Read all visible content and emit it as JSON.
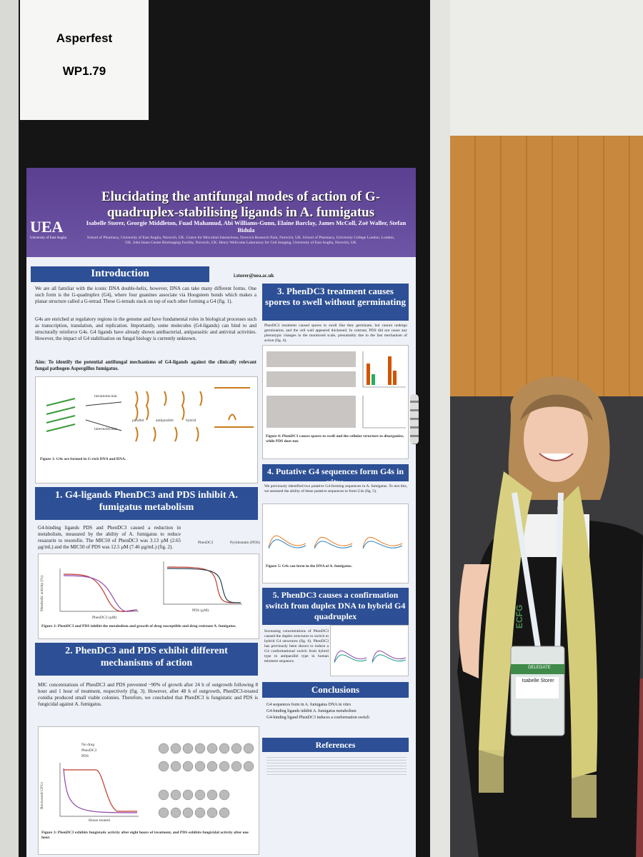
{
  "sign": {
    "line1": "Asperfest",
    "line2": "WP1.79"
  },
  "poster": {
    "title": "Elucidating the antifungal modes of action of G-quadruplex-stabilising ligands in A. fumigatus",
    "logo": "UEA",
    "logo_caption": "University of East Anglia",
    "authors": "Isabelle Storer, Georgie Middleton, Fuad Mahamud, Abi Williams-Gunn, Elaine Barclay, James McColl, Zoë Waller, Stefan Bidula",
    "affiliations": "School of Pharmacy, University of East Anglia, Norwich, UK. Centre for Microbial Interactions, Norwich Research Park, Norwich, UK. School of Pharmacy, University College London, London, UK. John Innes Centre Bioimaging Facility, Norwich, UK. Henry Wellcome Laboratory for Cell Imaging, University of East Anglia, Norwich, UK",
    "email": "i.storer@uea.ac.uk",
    "intro": {
      "heading": "Introduction",
      "p1": "We are all familiar with the iconic DNA double-helix, however, DNA can take many different forms. One such form is the G-quadruplex (G4), where four guanines associate via Hoogsteen bonds which makes a planar structure called a G-tetrad. These G-tetrads stack on top of each other forming a G4 (fig. 1).",
      "p2": "G4s are enriched at regulatory regions in the genome and have fundamental roles in biological processes such as transcription, translation, and replication. Importantly, some molecules (G4-ligands) can bind to and structurally reinforce G4s. G4 ligands have already shown antibacterial, antiparasitic and antiviral activities. However, the impact of G4 stabilisation on fungal biology is currently unknown.",
      "aim": "Aim: To identify the potential antifungal mechanisms of G4-ligands against the clinically relevant fungal pathogen Aspergillus fumigatus.",
      "fig_labels": [
        "intramolecular",
        "intermolecular",
        "parallel",
        "antiparallel",
        "hybrid"
      ],
      "caption": "Figure 1: G4s are formed in G-rich DNA and RNA."
    },
    "s1": {
      "heading": "1. G4-ligands PhenDC3 and PDS inhibit A. fumigatus metabolism",
      "text": "G4-binding ligands PDS and PhenDC3 caused a reduction in metabolism, measured by the ability of A. fumigatus to reduce resazurin to resorufin. The MIC50 of PhenDC3 was 3.13 µM (2.65 µg/mL) and the MIC50 of PDS was 12.5 µM (7.46 µg/mL) (fig. 2).",
      "ligands": [
        "PhenDC3",
        "Pyridostatin (PDS)"
      ],
      "y_label": "Metabolic activity (%)",
      "x_labels": [
        "PhenDC3 (µM)",
        "PDS (µM)"
      ],
      "caption": "Figure 2: PhenDC3 and PDS inhibit the metabolism and growth of drug susceptible and drug resistant A. fumigatus."
    },
    "s2": {
      "heading": "2. PhenDC3 and PDS exhibit different mechanisms of action",
      "text": "MIC concentrations of PhenDC3 and PDS prevented ~90% of growth after 24 h of outgrowth following 8 hour and 1 hour of treatment, respectively (fig. 3). However, after 48 h of outgrowth, PhenDC3-treated conidia produced small viable colonies. Therefore, we concluded that PhenDC3 is fungistatic and PDS is fungicidal against A. fumigatus.",
      "y_label": "Recovered CFUs",
      "x_label": "Hours treated",
      "legend": [
        "No drug",
        "PhenDC3",
        "PDS"
      ],
      "caption": "Figure 3: PhenDC3 exhibits fungistatic activity after eight hours of treatment, and PDS exhibits fungicidal activity after one hour."
    },
    "s3": {
      "heading": "3. PhenDC3 treatment causes spores to swell without germinating",
      "text": "PhenDC3 treatment caused spores to swell like they germinate, but cannot undergo germination, and the cell wall appeared thickened. In contrast, PDS did not cause any phenotypic changes in the monitored scale, presumably due to the fast mechanism of action (fig. 4).",
      "caption": "Figure 4: PhenDC3 causes spores to swell and the cellular structure to disorganise, while PDS does not."
    },
    "s4": {
      "heading": "4. Putative G4 sequences form G4s in vitro",
      "text": "We previously identified two putative G4-forming sequences in A. fumigatus. To test this, we assessed the ability of these putative sequences to form G4s (fig. 5).",
      "caption": "Figure 5: G4s can form in the DNA of A. fumigatus."
    },
    "s5": {
      "heading": "5. PhenDC3 causes a confirmation switch from duplex DNA to hybrid G4 quadruplex",
      "text": "Increasing concentrations of PhenDC3 caused the duplex structures to switch to hybrid G4 structures (fig. 6). PhenDC3 has previously been shown to induce a G4 conformational switch from hybrid type to antiparallel type in human telomere sequence."
    },
    "conclusions": {
      "heading": "Conclusions",
      "items": [
        "G4 sequences form in A. fumigatus DNA in vitro",
        "G4-binding ligands inhibit A. fumigatus metabolism",
        "G4-binding ligand PhenDC3 induces a conformation switch"
      ]
    },
    "references": {
      "heading": "References"
    }
  },
  "badge": {
    "event": "ECFG",
    "name": "Isabelle Storer",
    "role": "DELEGATE"
  }
}
